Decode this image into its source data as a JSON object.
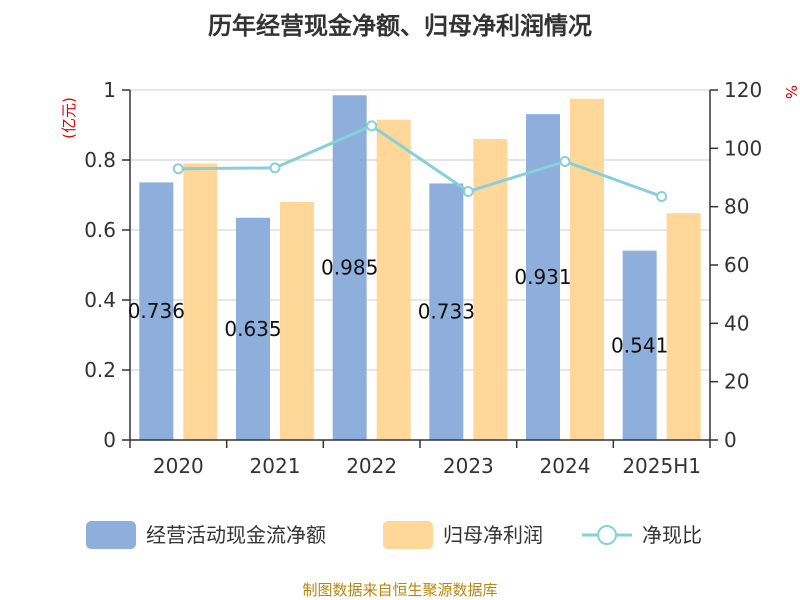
{
  "chart_data": {
    "type": "bar",
    "title": "历年经营现金净额、归母净利润情况",
    "categories": [
      "2020",
      "2021",
      "2022",
      "2023",
      "2024",
      "2025H1"
    ],
    "y_left": {
      "unit_label": "(亿元)",
      "ylim": [
        0,
        1
      ],
      "ticks": [
        "0",
        "0.2",
        "0.4",
        "0.6",
        "0.8",
        "1"
      ]
    },
    "y_right": {
      "unit_label": "%",
      "ylim": [
        0,
        120
      ],
      "ticks": [
        "0",
        "20",
        "40",
        "60",
        "80",
        "100",
        "120"
      ]
    },
    "series": [
      {
        "name": "经营活动现金流净额",
        "kind": "bar",
        "axis": "left",
        "color": "#8eaedb",
        "values": [
          0.736,
          0.635,
          0.985,
          0.733,
          0.931,
          0.541
        ],
        "labels": [
          "0.736",
          "0.635",
          "0.985",
          "0.733",
          "0.931",
          "0.541"
        ]
      },
      {
        "name": "归母净利润",
        "kind": "bar",
        "axis": "left",
        "color": "#ffd899",
        "values": [
          0.79,
          0.68,
          0.915,
          0.86,
          0.975,
          0.648
        ]
      },
      {
        "name": "净现比",
        "kind": "line",
        "axis": "right",
        "color": "#86d0d8",
        "values": [
          93,
          93.3,
          107.7,
          85.2,
          95.5,
          83.5
        ]
      }
    ],
    "legend_position": "bottom",
    "grid": true
  },
  "footer": {
    "source": "制图数据来自恒生聚源数据库"
  }
}
